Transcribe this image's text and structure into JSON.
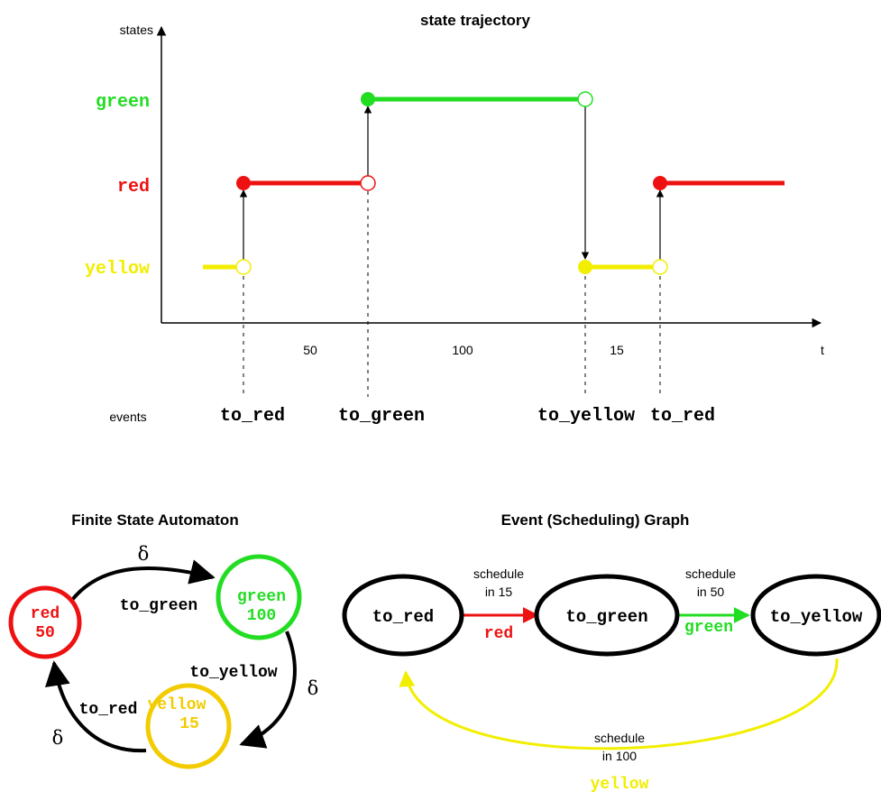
{
  "colors": {
    "green": "#22dd22",
    "red": "#ee1111",
    "yellow": "#f2ee00",
    "amber": "#f2cc00",
    "black": "#000000"
  },
  "trajectory": {
    "title": "state trajectory",
    "y_axis_label": "states",
    "x_axis_label": "t",
    "events_label": "events",
    "states": [
      "green",
      "red",
      "yellow"
    ],
    "durations": [
      "50",
      "100",
      "15"
    ],
    "events": [
      "to_red",
      "to_green",
      "to_yellow",
      "to_red"
    ]
  },
  "fsa": {
    "title": "Finite State Automaton",
    "states": [
      {
        "name": "red",
        "value": "50"
      },
      {
        "name": "green",
        "value": "100"
      },
      {
        "name": "yellow",
        "value": "15"
      }
    ],
    "transitions": [
      "to_green",
      "to_yellow",
      "to_red"
    ],
    "delta": "δ"
  },
  "event_graph": {
    "title": "Event (Scheduling) Graph",
    "nodes": [
      "to_red",
      "to_green",
      "to_yellow"
    ],
    "edges": [
      {
        "schedule": "schedule",
        "delay": "in 15",
        "condition": "red"
      },
      {
        "schedule": "schedule",
        "delay": "in 50",
        "condition": "green"
      },
      {
        "schedule": "schedule",
        "delay": "in 100",
        "condition": "yellow"
      }
    ]
  }
}
